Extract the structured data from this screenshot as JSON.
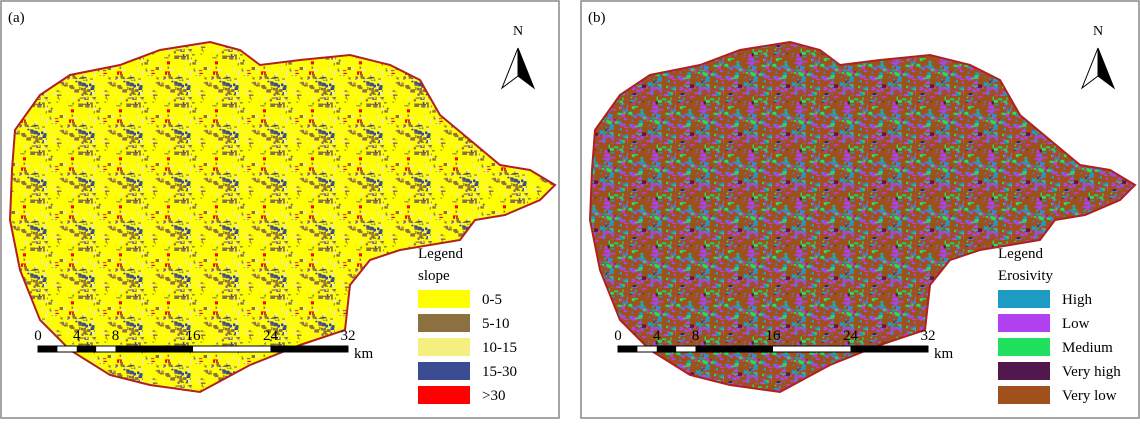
{
  "panels": [
    {
      "label": "(a)",
      "north": "N",
      "legend": {
        "title": "Legend",
        "subtitle": "slope",
        "items": [
          {
            "label": "0-5",
            "color": "#ffff00"
          },
          {
            "label": "5-10",
            "color": "#8c7040"
          },
          {
            "label": "10-15",
            "color": "#f5ee80"
          },
          {
            "label": "15-30",
            "color": "#3c4c94"
          },
          {
            "label": ">30",
            "color": "#ff0000"
          }
        ]
      },
      "scale": {
        "ticks": [
          0,
          4,
          8,
          16,
          24,
          32
        ],
        "unit": "km"
      }
    },
    {
      "label": "(b)",
      "north": "N",
      "legend": {
        "title": "Legend",
        "subtitle": "Erosivity",
        "items": [
          {
            "label": "High",
            "color": "#1c9cc4"
          },
          {
            "label": "Low",
            "color": "#b040f0"
          },
          {
            "label": "Medium",
            "color": "#20e060"
          },
          {
            "label": "Very high",
            "color": "#50184c"
          },
          {
            "label": "Very low",
            "color": "#a0501c"
          }
        ]
      },
      "scale": {
        "ticks": [
          0,
          4,
          8,
          16,
          24,
          32
        ],
        "unit": "km"
      }
    }
  ]
}
